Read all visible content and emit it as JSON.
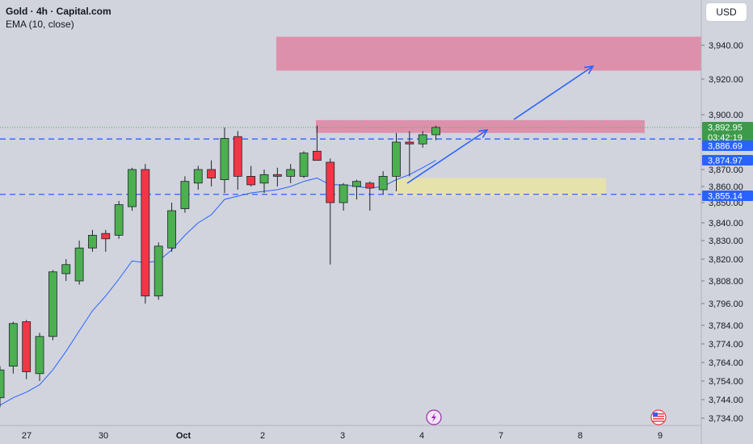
{
  "legend": {
    "title": "Gold · 4h · Capital.com",
    "indicator": "EMA (10, close)"
  },
  "currency": "USD",
  "colors": {
    "background": "#d1d4dc",
    "bull": "#4caf50",
    "bear": "#f23645",
    "wick": "#1e222d",
    "ema": "#2962ff",
    "zone_red": "#e07a9b",
    "zone_yellow": "#e8e3a6",
    "level_line": "#2962ff",
    "current_price_label": "#3d9a4a",
    "level_label": "#2962ff"
  },
  "chart_data": {
    "type": "candlestick",
    "y_ticks": [
      "3,940.00",
      "3,920.00",
      "3,900.00",
      "3,870.00",
      "3,860.00",
      "3,850.00",
      "3,840.00",
      "3,830.00",
      "3,820.00",
      "3,808.00",
      "3,796.00",
      "3,784.00",
      "3,774.00",
      "3,764.00",
      "3,754.00",
      "3,744.00",
      "3,734.00"
    ],
    "x_ticks": [
      "27",
      "30",
      "Oct",
      "2",
      "3",
      "4",
      "7",
      "8",
      "9"
    ],
    "price_labels": [
      {
        "price": "3,892.95",
        "sub": "03:42:19",
        "kind": "current"
      },
      {
        "price": "3,886.69",
        "kind": "level"
      },
      {
        "price": "3,874.97",
        "kind": "ema"
      },
      {
        "price": "3,855.14",
        "kind": "level"
      }
    ],
    "horizontal_levels": [
      3886.69,
      3855.14
    ],
    "zones": [
      {
        "color": "red",
        "from_date": "Oct 2",
        "to_date": "Oct 8 (right edge)",
        "low": 3925,
        "high": 3945
      },
      {
        "color": "red",
        "from_date": "Oct 2",
        "to_date": "Oct 8",
        "low": 3890,
        "high": 3897
      },
      {
        "color": "yellow",
        "from_date": "Oct 3",
        "to_date": "Oct 7",
        "low": 3854,
        "high": 3865
      }
    ],
    "candles": [
      {
        "o": 3745,
        "h": 3762,
        "l": 3740,
        "c": 3760
      },
      {
        "o": 3762,
        "h": 3786,
        "l": 3758,
        "c": 3785
      },
      {
        "o": 3786,
        "h": 3787,
        "l": 3755,
        "c": 3759
      },
      {
        "o": 3758,
        "h": 3780,
        "l": 3754,
        "c": 3778
      },
      {
        "o": 3778,
        "h": 3814,
        "l": 3776,
        "c": 3813
      },
      {
        "o": 3812,
        "h": 3820,
        "l": 3808,
        "c": 3817
      },
      {
        "o": 3808,
        "h": 3830,
        "l": 3806,
        "c": 3826
      },
      {
        "o": 3826,
        "h": 3836,
        "l": 3824,
        "c": 3833
      },
      {
        "o": 3834,
        "h": 3836,
        "l": 3824,
        "c": 3831
      },
      {
        "o": 3833,
        "h": 3851,
        "l": 3831,
        "c": 3849
      },
      {
        "o": 3848,
        "h": 3871,
        "l": 3846,
        "c": 3870
      },
      {
        "o": 3870,
        "h": 3873,
        "l": 3796,
        "c": 3800
      },
      {
        "o": 3800,
        "h": 3829,
        "l": 3798,
        "c": 3827
      },
      {
        "o": 3826,
        "h": 3850,
        "l": 3824,
        "c": 3846
      },
      {
        "o": 3847,
        "h": 3866,
        "l": 3845,
        "c": 3863
      },
      {
        "o": 3862,
        "h": 3872,
        "l": 3858,
        "c": 3870
      },
      {
        "o": 3870,
        "h": 3875,
        "l": 3860,
        "c": 3865
      },
      {
        "o": 3864,
        "h": 3893,
        "l": 3856,
        "c": 3887
      },
      {
        "o": 3888,
        "h": 3891,
        "l": 3858,
        "c": 3866
      },
      {
        "o": 3866,
        "h": 3872,
        "l": 3860,
        "c": 3861
      },
      {
        "o": 3862,
        "h": 3870,
        "l": 3856,
        "c": 3867
      },
      {
        "o": 3867,
        "h": 3871,
        "l": 3860,
        "c": 3866
      },
      {
        "o": 3866,
        "h": 3873,
        "l": 3862,
        "c": 3870
      },
      {
        "o": 3866,
        "h": 3880,
        "l": 3865,
        "c": 3879
      },
      {
        "o": 3880,
        "h": 3894,
        "l": 3876,
        "c": 3875
      },
      {
        "o": 3874,
        "h": 3876,
        "l": 3817,
        "c": 3850
      },
      {
        "o": 3850,
        "h": 3862,
        "l": 3846,
        "c": 3861
      },
      {
        "o": 3860,
        "h": 3864,
        "l": 3852,
        "c": 3863
      },
      {
        "o": 3862,
        "h": 3863,
        "l": 3846,
        "c": 3859
      },
      {
        "o": 3858,
        "h": 3869,
        "l": 3855,
        "c": 3866
      },
      {
        "o": 3866,
        "h": 3890,
        "l": 3857,
        "c": 3885
      },
      {
        "o": 3885,
        "h": 3891,
        "l": 3866,
        "c": 3884
      },
      {
        "o": 3884,
        "h": 3891,
        "l": 3882,
        "c": 3889
      },
      {
        "o": 3889,
        "h": 3894,
        "l": 3886,
        "c": 3893
      }
    ],
    "ema": [
      3741,
      3745,
      3748,
      3752,
      3760,
      3770,
      3781,
      3792,
      3800,
      3809,
      3819,
      3818,
      3819,
      3825,
      3833,
      3840,
      3844,
      3852,
      3854,
      3856,
      3857,
      3858,
      3860,
      3863,
      3865,
      3861,
      3861,
      3860,
      3859,
      3860,
      3864,
      3867,
      3871,
      3875
    ],
    "arrows": [
      {
        "from": "after Oct 3",
        "to": "Oct 7"
      },
      {
        "from": "Oct 7",
        "to": "Oct 8 upper zone"
      }
    ],
    "event_icons": [
      "lightning",
      "us-flag"
    ]
  }
}
